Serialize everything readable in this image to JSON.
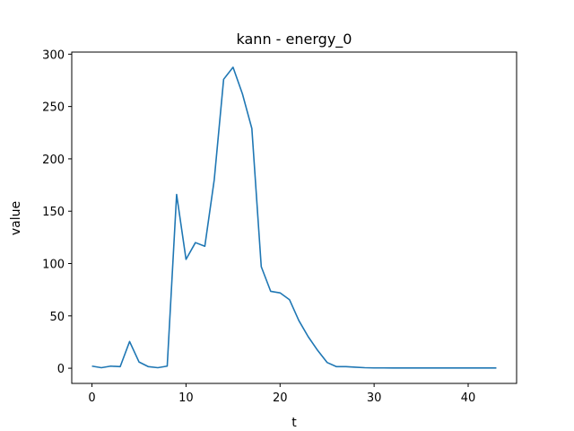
{
  "chart_data": {
    "type": "line",
    "title": "kann - energy_0",
    "xlabel": "t",
    "ylabel": "value",
    "xlim": [
      -2.15,
      45.15
    ],
    "ylim": [
      -14.5,
      302
    ],
    "xticks": [
      0,
      10,
      20,
      30,
      40
    ],
    "yticks": [
      0,
      50,
      100,
      150,
      200,
      250,
      300
    ],
    "grid": false,
    "series": [
      {
        "color": "#1f77b4",
        "x": [
          0,
          1,
          2,
          3,
          4,
          5,
          6,
          7,
          8,
          9,
          10,
          11,
          12,
          13,
          14,
          15,
          16,
          17,
          18,
          19,
          20,
          21,
          22,
          23,
          24,
          25,
          26,
          27,
          28,
          29,
          30,
          31,
          32,
          33,
          34,
          35,
          36,
          37,
          38,
          39,
          40,
          41,
          42,
          43
        ],
        "values": [
          2,
          0.5,
          2,
          1.5,
          25.5,
          6,
          1.5,
          0.5,
          2,
          166,
          104,
          120,
          116.5,
          180,
          276,
          287.5,
          262,
          229,
          97,
          73.5,
          72,
          65.5,
          45.5,
          30,
          17,
          5.5,
          1.5,
          1.5,
          1,
          0.5,
          0.3,
          0.3,
          0.2,
          0.2,
          0.2,
          0.2,
          0.2,
          0.2,
          0.2,
          0.2,
          0.2,
          0.2,
          0.2,
          0.2
        ]
      }
    ]
  }
}
